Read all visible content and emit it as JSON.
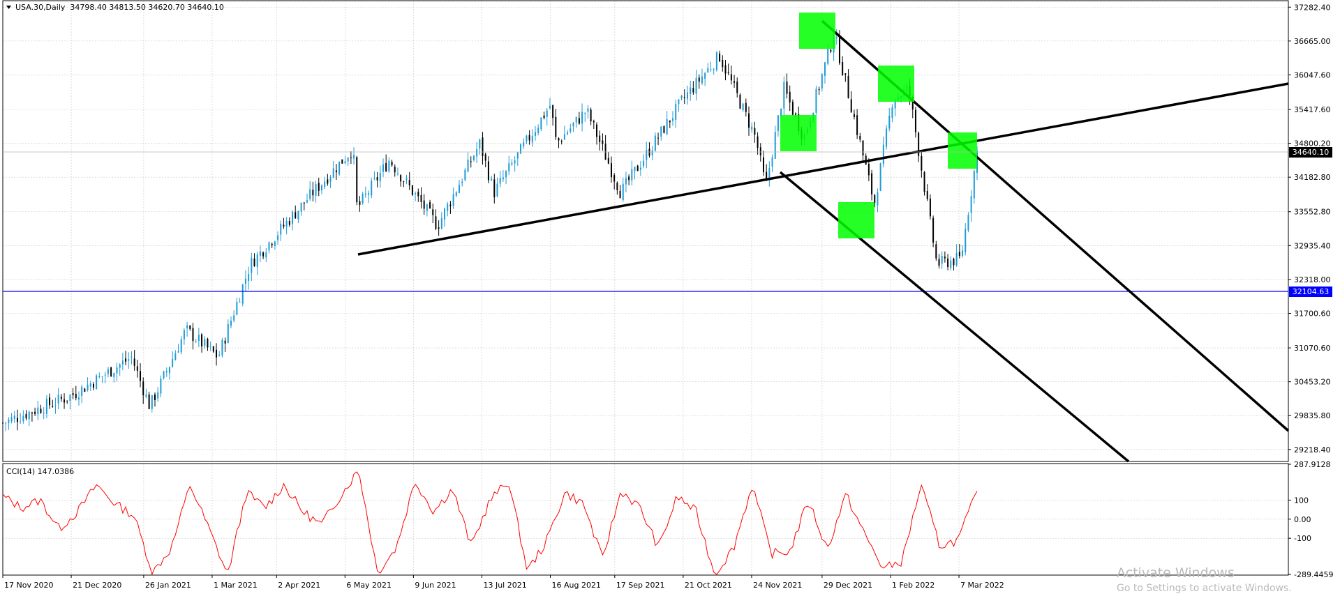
{
  "header": {
    "symbol": "USA.30,Daily",
    "open": "34798.40",
    "high": "34813.50",
    "low": "34620.70",
    "close": "34640.10"
  },
  "price_axis": {
    "ticks": [
      "37282.40",
      "36665.00",
      "36047.60",
      "35417.60",
      "34800.20",
      "34182.80",
      "33552.80",
      "32935.40",
      "32318.00",
      "31700.60",
      "31070.60",
      "30453.20",
      "29835.80",
      "29218.40"
    ],
    "current_price_label": "34640.10",
    "horizontal_line_label": "32104.63"
  },
  "indicator": {
    "title": "CCI(14) 147.0386",
    "ticks": [
      "287.9128",
      "100",
      "0.00",
      "-100",
      "-289.4459"
    ]
  },
  "time_axis": {
    "labels": [
      "17 Nov 2020",
      "21 Dec 2020",
      "26 Jan 2021",
      "1 Mar 2021",
      "2 Apr 2021",
      "6 May 2021",
      "9 Jun 2021",
      "13 Jul 2021",
      "16 Aug 2021",
      "17 Sep 2021",
      "21 Oct 2021",
      "24 Nov 2021",
      "29 Dec 2021",
      "1 Feb 2022",
      "7 Mar 2022"
    ]
  },
  "watermark": {
    "title": "Activate Windows",
    "subtitle": "Go to Settings to activate Windows."
  },
  "colors": {
    "bull_candle": "#1e9bd7",
    "bear_candle": "#000000",
    "cci_line": "#ff0000",
    "hline": "#0000ff",
    "highlight_box": "#00ff00",
    "grid": "#c8c8c8"
  },
  "chart_data": [
    {
      "type": "candlestick",
      "title": "USA.30,Daily",
      "ylim": [
        29000,
        37400
      ],
      "x_range": [
        "2020-11-17",
        "2022-03-16"
      ],
      "approx_close_path": [
        [
          "2020-11-17",
          29700
        ],
        [
          "2020-12-21",
          30200
        ],
        [
          "2021-01-20",
          30900
        ],
        [
          "2021-01-29",
          30000
        ],
        [
          "2021-02-16",
          31400
        ],
        [
          "2021-03-04",
          30900
        ],
        [
          "2021-03-20",
          32600
        ],
        [
          "2021-04-20",
          33900
        ],
        [
          "2021-05-10",
          34700
        ],
        [
          "2021-05-12",
          33600
        ],
        [
          "2021-05-28",
          34500
        ],
        [
          "2021-06-21",
          33300
        ],
        [
          "2021-07-12",
          34800
        ],
        [
          "2021-07-19",
          33900
        ],
        [
          "2021-08-16",
          35500
        ],
        [
          "2021-08-19",
          34800
        ],
        [
          "2021-09-03",
          35400
        ],
        [
          "2021-09-20",
          33900
        ],
        [
          "2021-10-21",
          35600
        ],
        [
          "2021-11-08",
          36400
        ],
        [
          "2021-11-26",
          34900
        ],
        [
          "2021-12-01",
          34000
        ],
        [
          "2021-12-10",
          35800
        ],
        [
          "2021-12-20",
          34900
        ],
        [
          "2022-01-04",
          36800
        ],
        [
          "2022-01-24",
          33700
        ],
        [
          "2022-02-02",
          35600
        ],
        [
          "2022-02-10",
          35800
        ],
        [
          "2022-02-24",
          32600
        ],
        [
          "2022-03-08",
          32700
        ],
        [
          "2022-03-16",
          34640
        ]
      ],
      "horizontal_line": 32104.63,
      "current_price": 34640.1
    },
    {
      "type": "line",
      "title": "CCI(14) 147.0386",
      "ylim": [
        -289.4459,
        287.9128
      ],
      "series": [
        {
          "values": [
            120,
            60,
            100,
            -50,
            40,
            180,
            80,
            20,
            -280,
            -150,
            180,
            -50,
            -290,
            140,
            60,
            180,
            40,
            -30,
            120,
            260,
            -280,
            -150,
            200,
            40,
            160,
            -140,
            100,
            200,
            -270,
            -120,
            140,
            80,
            -210,
            150,
            60,
            -150,
            120,
            40,
            -290,
            -150,
            180,
            -180,
            -170,
            100,
            -160,
            130,
            -80,
            -260,
            -220,
            180,
            -140,
            -110,
            147
          ]
        }
      ]
    }
  ]
}
